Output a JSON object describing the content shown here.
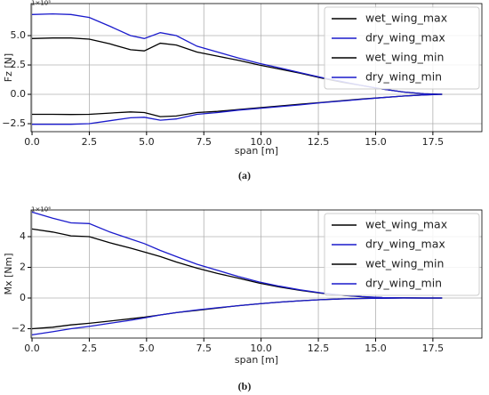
{
  "chart_data": [
    {
      "type": "line",
      "y_offset_label": "1×10⁵",
      "ylabel": "Fz [N]",
      "xlabel": "span [m]",
      "caption": "(a)",
      "xlim": [
        -0.04,
        19.64
      ],
      "ylim": [
        -3.18,
        7.73
      ],
      "xticks": [
        {
          "value": 0,
          "label": "0.0"
        },
        {
          "value": 2.5,
          "label": "2.5"
        },
        {
          "value": 5,
          "label": "5.0"
        },
        {
          "value": 7.5,
          "label": "7.5"
        },
        {
          "value": 10,
          "label": "10.0"
        },
        {
          "value": 12.5,
          "label": "12.5"
        },
        {
          "value": 15,
          "label": "15.0"
        },
        {
          "value": 17.5,
          "label": "17.5"
        }
      ],
      "yticks": [
        {
          "value": -2.5,
          "label": "−2.5"
        },
        {
          "value": 0,
          "label": "0.0"
        },
        {
          "value": 2.5,
          "label": "2.5"
        },
        {
          "value": 5,
          "label": "5.0"
        }
      ],
      "grid": true,
      "legend": "upper right",
      "x": [
        0,
        0.9,
        1.7,
        2.5,
        3.4,
        4.3,
        4.9,
        5.6,
        6.3,
        7.2,
        8.1,
        9,
        9.9,
        10.8,
        11.7,
        12.6,
        13.5,
        14.4,
        15.3,
        16.2,
        17.1,
        17.9
      ],
      "series": [
        {
          "name": "wet_wing_max",
          "color": "#000000",
          "values": [
            4.75,
            4.8,
            4.8,
            4.7,
            4.3,
            3.8,
            3.7,
            4.35,
            4.2,
            3.6,
            3.25,
            2.9,
            2.5,
            2.15,
            1.8,
            1.4,
            1.05,
            0.75,
            0.45,
            0.2,
            0.05,
            0
          ]
        },
        {
          "name": "dry_wing_max",
          "color": "#1a1acc",
          "values": [
            6.8,
            6.85,
            6.8,
            6.55,
            5.8,
            5.0,
            4.75,
            5.25,
            5.0,
            4.1,
            3.6,
            3.1,
            2.65,
            2.25,
            1.85,
            1.45,
            1.1,
            0.75,
            0.45,
            0.2,
            0.05,
            0
          ]
        },
        {
          "name": "wet_wing_min",
          "color": "#000000",
          "values": [
            -1.7,
            -1.7,
            -1.72,
            -1.7,
            -1.6,
            -1.5,
            -1.55,
            -1.9,
            -1.85,
            -1.55,
            -1.45,
            -1.3,
            -1.15,
            -1.0,
            -0.85,
            -0.7,
            -0.55,
            -0.4,
            -0.28,
            -0.15,
            -0.05,
            0
          ]
        },
        {
          "name": "dry_wing_min",
          "color": "#1a1acc",
          "values": [
            -2.55,
            -2.55,
            -2.55,
            -2.5,
            -2.25,
            -2.0,
            -1.95,
            -2.2,
            -2.1,
            -1.7,
            -1.55,
            -1.35,
            -1.2,
            -1.05,
            -0.9,
            -0.72,
            -0.57,
            -0.42,
            -0.28,
            -0.15,
            -0.05,
            0
          ]
        }
      ]
    },
    {
      "type": "line",
      "y_offset_label": "1×10⁶",
      "ylabel": "Mx [Nm]",
      "xlabel": "span [m]",
      "caption": "(b)",
      "xlim": [
        -0.04,
        19.64
      ],
      "ylim": [
        -2.61,
        5.74
      ],
      "xticks": [
        {
          "value": 0,
          "label": "0.0"
        },
        {
          "value": 2.5,
          "label": "2.5"
        },
        {
          "value": 5,
          "label": "5.0"
        },
        {
          "value": 7.5,
          "label": "7.5"
        },
        {
          "value": 10,
          "label": "10.0"
        },
        {
          "value": 12.5,
          "label": "12.5"
        },
        {
          "value": 15,
          "label": "15.0"
        },
        {
          "value": 17.5,
          "label": "17.5"
        }
      ],
      "yticks": [
        {
          "value": -2,
          "label": "−2"
        },
        0,
        2,
        4
      ],
      "grid": true,
      "legend": "upper right",
      "x": [
        0,
        0.9,
        1.7,
        2.5,
        3.4,
        4.3,
        4.9,
        5.6,
        6.3,
        7.2,
        8.1,
        9,
        9.9,
        10.8,
        11.7,
        12.6,
        13.5,
        14.4,
        15.3,
        16.2,
        17.1,
        17.9
      ],
      "series": [
        {
          "name": "wet_wing_max",
          "color": "#000000",
          "values": [
            4.5,
            4.3,
            4.05,
            4.0,
            3.6,
            3.25,
            3.0,
            2.7,
            2.35,
            1.95,
            1.6,
            1.3,
            0.98,
            0.72,
            0.5,
            0.32,
            0.18,
            0.08,
            0.03,
            0.01,
            0,
            0
          ]
        },
        {
          "name": "dry_wing_max",
          "color": "#1a1acc",
          "values": [
            5.6,
            5.2,
            4.9,
            4.85,
            4.3,
            3.85,
            3.55,
            3.1,
            2.7,
            2.2,
            1.8,
            1.4,
            1.05,
            0.77,
            0.53,
            0.34,
            0.19,
            0.09,
            0.03,
            0.01,
            0,
            0
          ]
        },
        {
          "name": "wet_wing_min",
          "color": "#000000",
          "values": [
            -2.0,
            -1.9,
            -1.75,
            -1.65,
            -1.5,
            -1.35,
            -1.25,
            -1.1,
            -0.95,
            -0.8,
            -0.65,
            -0.5,
            -0.38,
            -0.27,
            -0.18,
            -0.11,
            -0.06,
            -0.03,
            -0.01,
            0,
            0,
            0
          ]
        },
        {
          "name": "dry_wing_min",
          "color": "#1a1acc",
          "values": [
            -2.4,
            -2.2,
            -2.0,
            -1.85,
            -1.65,
            -1.45,
            -1.3,
            -1.1,
            -0.95,
            -0.78,
            -0.63,
            -0.5,
            -0.38,
            -0.27,
            -0.18,
            -0.11,
            -0.06,
            -0.03,
            -0.01,
            0,
            0,
            0
          ]
        }
      ]
    }
  ]
}
